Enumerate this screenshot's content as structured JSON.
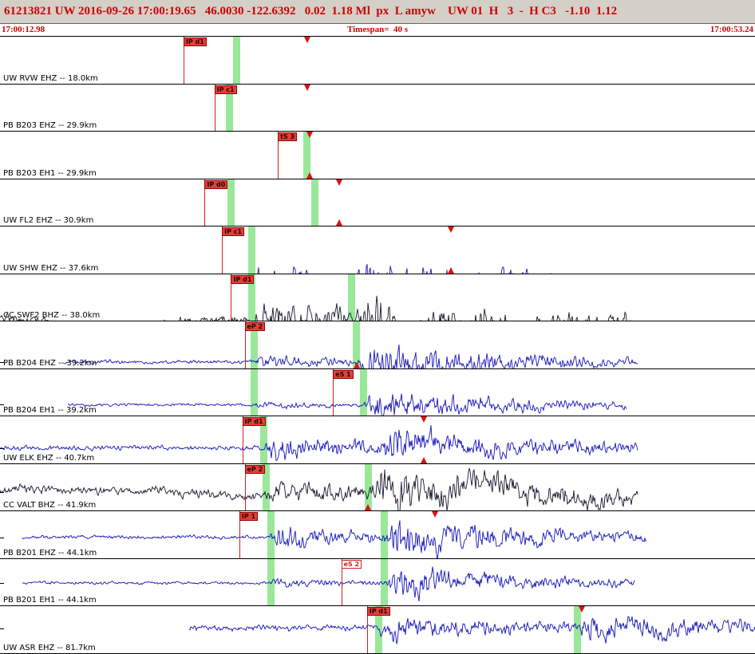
{
  "header": {
    "line1": "61213821 UW 2016-09-26 17:00:19.65   46.0030 -122.6392   0.02  1.18 Ml  px  L amyw    UW 01  H   3  -  H C3   -1.10  1.12"
  },
  "timeline": {
    "start": "17:00:12.98",
    "span": "Timespan=  40 s",
    "end": "17:00:53.24"
  },
  "colors": {
    "accent": "#cc0000",
    "header_bg": "#d4d0c8",
    "blue": "#1414b8",
    "dark": "#16162c",
    "green": "#99e899",
    "pick_red": "#dd2222"
  },
  "traces": [
    {
      "label": "UW RVW EHZ -- 18.0km",
      "color": "blue",
      "seed": 1,
      "x0": 0,
      "x1": 0.745,
      "quiet": 2.2,
      "drift": 0,
      "p": 0.246,
      "pAmp": 13,
      "pTau": 220,
      "s": 0.4,
      "sAmp": 7,
      "sTau": 160,
      "bars": [
        0.313
      ],
      "picks": [
        {
          "x": 0.243,
          "label": "IP d1",
          "filled": true
        }
      ],
      "markers": [
        {
          "x": 0.407,
          "dir": "down"
        }
      ]
    },
    {
      "label": "PB B203 EHZ -- 29.9km",
      "color": "blue",
      "seed": 2,
      "x0": 0.048,
      "x1": 0.8,
      "quiet": 1.6,
      "drift": 0,
      "p": 0.292,
      "pAmp": 7,
      "pTau": 100,
      "s": 0.405,
      "sAmp": 14,
      "sTau": 180,
      "bars": [
        0.303
      ],
      "picks": [
        {
          "x": 0.284,
          "label": "IP c1",
          "filled": true
        }
      ],
      "markers": [
        {
          "x": 0.407,
          "dir": "down"
        }
      ]
    },
    {
      "label": "PB B203 EH1 -- 29.9km",
      "color": "blue",
      "seed": 3,
      "x0": 0.048,
      "x1": 0.8,
      "quiet": 1.4,
      "drift": 0,
      "p": 0.292,
      "pAmp": 3,
      "pTau": 90,
      "s": 0.408,
      "sAmp": 14,
      "sTau": 170,
      "bars": [
        0.406
      ],
      "picks": [
        {
          "x": 0.368,
          "label": "tS 3",
          "filled": true
        }
      ],
      "markers": [
        {
          "x": 0.41,
          "dir": "down"
        },
        {
          "x": 0.41,
          "dir": "up"
        }
      ]
    },
    {
      "label": "UW FL2 EHZ -- 30.9km",
      "color": "blue",
      "seed": 4,
      "x0": 0,
      "x1": 0.8,
      "quiet": 1.8,
      "drift": 0,
      "p": 0.307,
      "pAmp": 8,
      "pTau": 110,
      "s": 0.447,
      "sAmp": 13,
      "sTau": 170,
      "bars": [
        0.306,
        0.416
      ],
      "picks": [
        {
          "x": 0.271,
          "label": "IP d0",
          "filled": true
        }
      ],
      "markers": [
        {
          "x": 0.449,
          "dir": "down"
        },
        {
          "x": 0.449,
          "dir": "up"
        }
      ]
    },
    {
      "label": "UW SHW EHZ -- 37.6km",
      "color": "blue",
      "seed": 5,
      "x0": 0,
      "x1": 0.975,
      "quiet": 1.8,
      "drift": 0,
      "p": 0.334,
      "pAmp": 11,
      "pTau": 140,
      "s": 0.47,
      "sAmp": 11,
      "sTau": 260,
      "bars": [
        0.333
      ],
      "picks": [
        {
          "x": 0.294,
          "label": "IP c1",
          "filled": true
        }
      ],
      "markers": [
        {
          "x": 0.597,
          "dir": "down"
        },
        {
          "x": 0.597,
          "dir": "up"
        }
      ]
    },
    {
      "label": "CC SWF2 BHZ -- 38.0km",
      "color": "dark",
      "seed": 6,
      "x0": 0,
      "x1": 0.835,
      "quiet": 2.5,
      "drift": 6,
      "p": 0.334,
      "pAmp": 9,
      "pTau": 150,
      "s": 0.468,
      "sAmp": 12,
      "sTau": 240,
      "bars": [
        0.333,
        0.465
      ],
      "picks": [
        {
          "x": 0.306,
          "label": "IP d1",
          "filled": true
        }
      ],
      "markers": []
    },
    {
      "label": "PB B204 EHZ -- 39.2km",
      "color": "blue",
      "seed": 7,
      "x0": 0.085,
      "x1": 0.845,
      "quiet": 1.4,
      "drift": 0,
      "p": 0.337,
      "pAmp": 4.5,
      "pTau": 100,
      "s": 0.472,
      "sAmp": 12,
      "sTau": 200,
      "bars": [
        0.336,
        0.471
      ],
      "picks": [
        {
          "x": 0.324,
          "label": "eP 2",
          "filled": true
        }
      ],
      "markers": [
        {
          "x": 0.472,
          "dir": "up"
        }
      ]
    },
    {
      "label": "PB B204 EH1 -- 39.2km",
      "color": "blue",
      "seed": 8,
      "x0": 0.09,
      "x1": 0.83,
      "quiet": 1.1,
      "drift": 0,
      "p": 0.337,
      "pAmp": 2,
      "pTau": 80,
      "s": 0.482,
      "sAmp": 11,
      "sTau": 170,
      "bars": [
        0.336,
        0.481
      ],
      "picks": [
        {
          "x": 0.441,
          "label": "eS 1",
          "filled": true
        }
      ],
      "markers": []
    },
    {
      "label": "UW ELK EHZ -- 40.7km",
      "color": "blue",
      "seed": 9,
      "x0": 0,
      "x1": 0.845,
      "quiet": 1.8,
      "drift": 0,
      "p": 0.347,
      "pAmp": 9,
      "pTau": 120,
      "s": 0.5,
      "sAmp": 10,
      "sTau": 200,
      "bars": [
        0.349
      ],
      "picks": [
        {
          "x": 0.321,
          "label": "IP d1",
          "filled": true
        }
      ],
      "markers": [
        {
          "x": 0.561,
          "dir": "down"
        },
        {
          "x": 0.561,
          "dir": "up"
        }
      ]
    },
    {
      "label": "CC VALT BHZ -- 41.9km",
      "color": "dark",
      "seed": 10,
      "x0": 0,
      "x1": 0.845,
      "quiet": 2.5,
      "drift": 4.5,
      "p": 0.352,
      "pAmp": 5,
      "pTau": 130,
      "s": 0.487,
      "sAmp": 12,
      "sTau": 260,
      "bars": [
        0.352,
        0.487
      ],
      "picks": [
        {
          "x": 0.324,
          "label": "eP 2",
          "filled": true
        }
      ],
      "markers": [
        {
          "x": 0.487,
          "dir": "up"
        }
      ]
    },
    {
      "label": "PB B201 EHZ -- 44.1km",
      "color": "blue",
      "seed": 11,
      "x0": 0.03,
      "x1": 0.856,
      "quiet": 1.4,
      "drift": 0,
      "p": 0.357,
      "pAmp": 8,
      "pTau": 110,
      "s": 0.51,
      "sAmp": 12,
      "sTau": 190,
      "bars": [
        0.358,
        0.508
      ],
      "picks": [
        {
          "x": 0.317,
          "label": "IP 1",
          "filled": true
        }
      ],
      "markers": [
        {
          "x": 0.576,
          "dir": "down"
        }
      ]
    },
    {
      "label": "PB B201 EH1 -- 44.1km",
      "color": "blue",
      "seed": 12,
      "x0": 0.03,
      "x1": 0.84,
      "quiet": 1.1,
      "drift": 0,
      "p": 0.357,
      "pAmp": 2.5,
      "pTau": 90,
      "s": 0.51,
      "sAmp": 11,
      "sTau": 170,
      "bars": [
        0.358,
        0.508
      ],
      "picks": [
        {
          "x": 0.452,
          "label": "eS 2",
          "filled": false
        }
      ],
      "markers": []
    },
    {
      "label": "UW ASR EHZ -- 81.7km",
      "color": "blue",
      "seed": 13,
      "x0": 0.25,
      "x1": 1,
      "quiet": 2.2,
      "drift": 0,
      "p": 0.5,
      "pAmp": 8,
      "pTau": 150,
      "s": 0.765,
      "sAmp": 7,
      "sTau": 200,
      "bars": [
        0.501,
        0.764
      ],
      "picks": [
        {
          "x": 0.486,
          "label": "IP d1",
          "filled": true
        }
      ],
      "markers": [
        {
          "x": 0.771,
          "dir": "down"
        }
      ]
    }
  ]
}
